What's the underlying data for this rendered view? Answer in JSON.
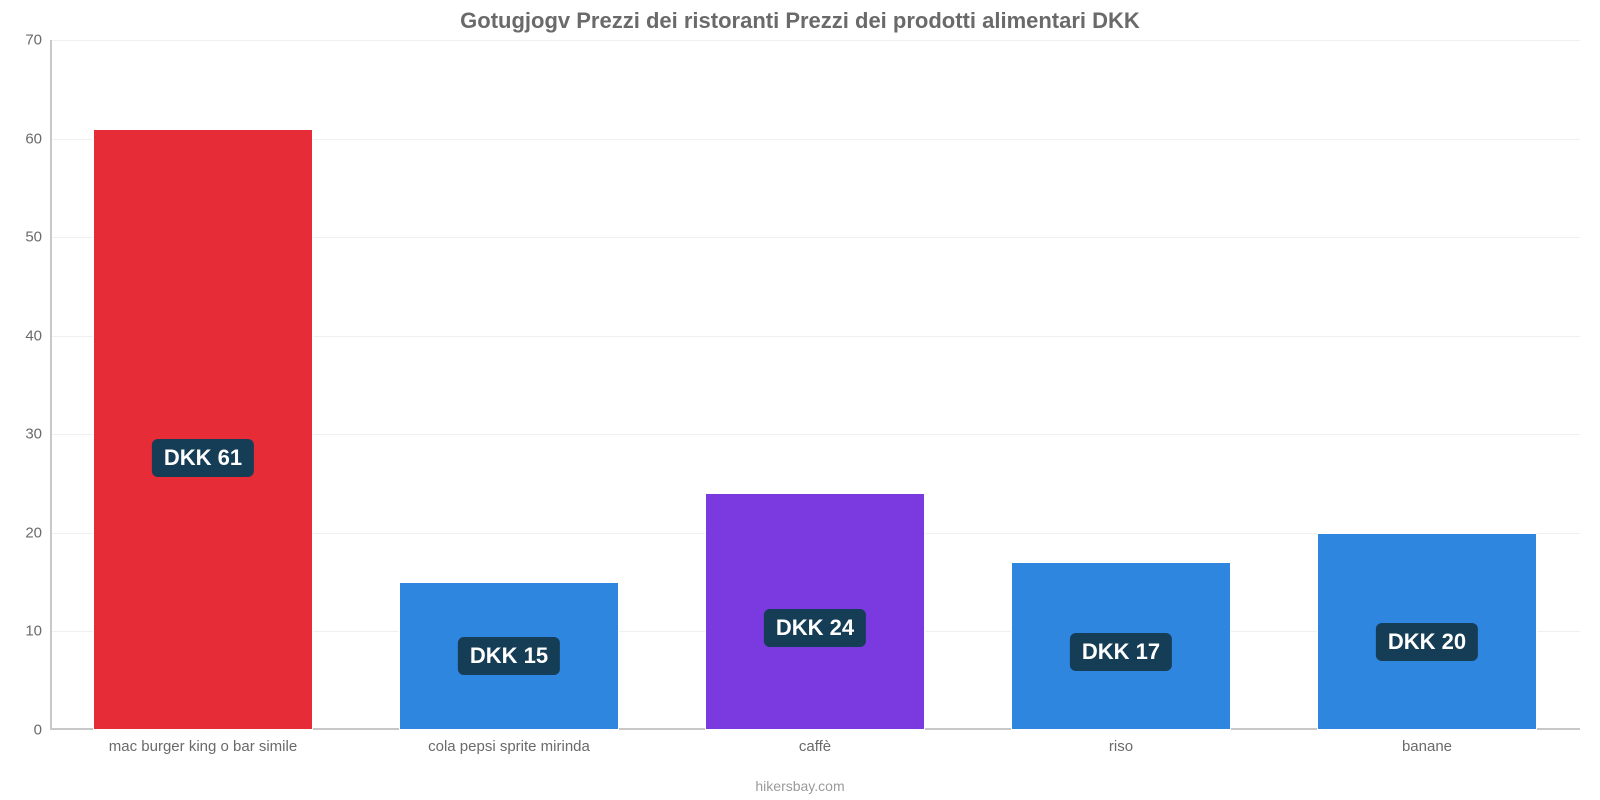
{
  "chart": {
    "type": "bar",
    "title": "Gotugjogv Prezzi dei ristoranti Prezzi dei prodotti alimentari DKK",
    "title_color": "#6a6a6a",
    "title_fontsize": 22,
    "background_color": "#ffffff",
    "grid_color": "#f0f0f0",
    "axis_color": "#c8c8c8",
    "tick_label_color": "#6a6a6a",
    "tick_label_fontsize": 15,
    "ylim": [
      0,
      70
    ],
    "ytick_step": 10,
    "yticks": [
      0,
      10,
      20,
      30,
      40,
      50,
      60,
      70
    ],
    "bar_width_ratio": 0.72,
    "value_label_currency": "DKK",
    "value_label_bg": "#153d56",
    "value_label_color": "#ffffff",
    "value_label_fontsize": 22,
    "categories": [
      "mac burger king o bar simile",
      "cola pepsi sprite mirinda",
      "caffè",
      "riso",
      "banane"
    ],
    "values": [
      61,
      15,
      24,
      17,
      20
    ],
    "bar_colors": [
      "#e62c37",
      "#2e86de",
      "#7b3ae0",
      "#2e86de",
      "#2e86de"
    ],
    "credit": "hikersbay.com",
    "credit_color": "#9a9a9a",
    "credit_fontsize": 14
  }
}
